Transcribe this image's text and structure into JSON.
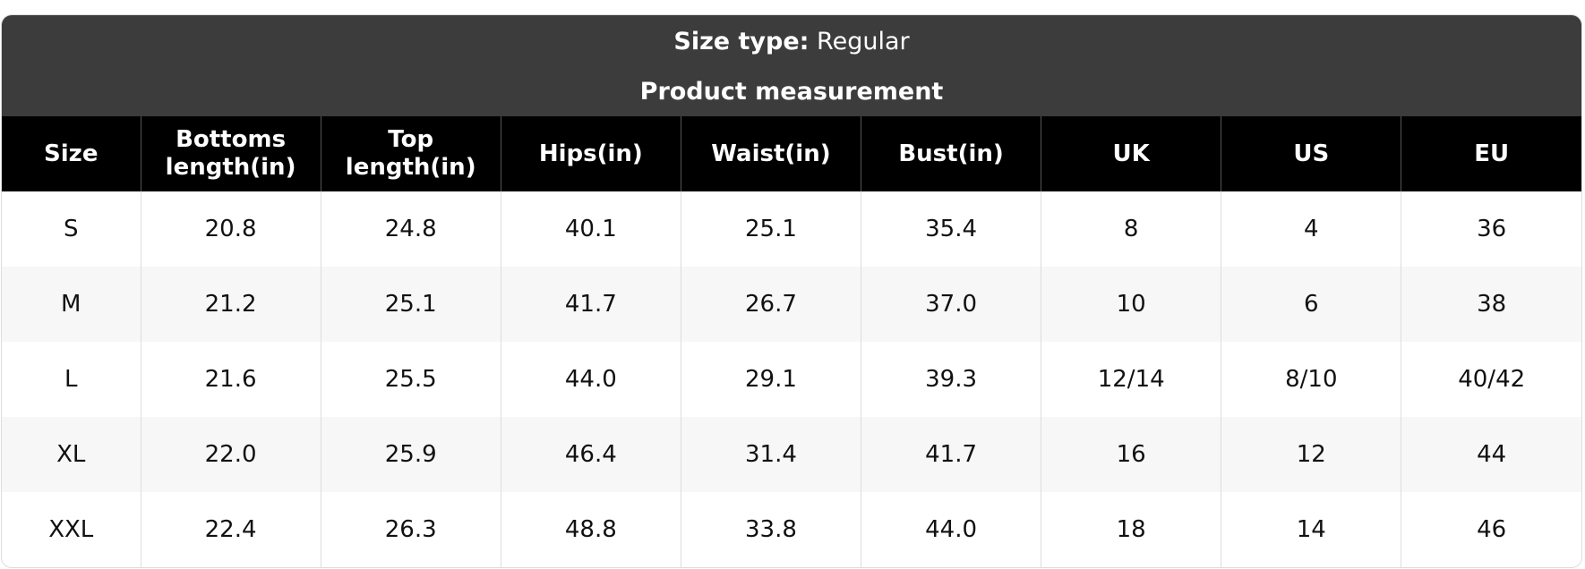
{
  "header": {
    "size_type_label": "Size type:",
    "size_type_value": "Regular",
    "subtitle": "Product measurement"
  },
  "table": {
    "columns": [
      "Size",
      "Bottoms length(in)",
      "Top length(in)",
      "Hips(in)",
      "Waist(in)",
      "Bust(in)",
      "UK",
      "US",
      "EU"
    ],
    "rows": [
      [
        "S",
        "20.8",
        "24.8",
        "40.1",
        "25.1",
        "35.4",
        "8",
        "4",
        "36"
      ],
      [
        "M",
        "21.2",
        "25.1",
        "41.7",
        "26.7",
        "37.0",
        "10",
        "6",
        "38"
      ],
      [
        "L",
        "21.6",
        "25.5",
        "44.0",
        "29.1",
        "39.3",
        "12/14",
        "8/10",
        "40/42"
      ],
      [
        "XL",
        "22.0",
        "25.9",
        "46.4",
        "31.4",
        "41.7",
        "16",
        "12",
        "44"
      ],
      [
        "XXL",
        "22.4",
        "26.3",
        "48.8",
        "33.8",
        "44.0",
        "18",
        "14",
        "46"
      ]
    ]
  }
}
